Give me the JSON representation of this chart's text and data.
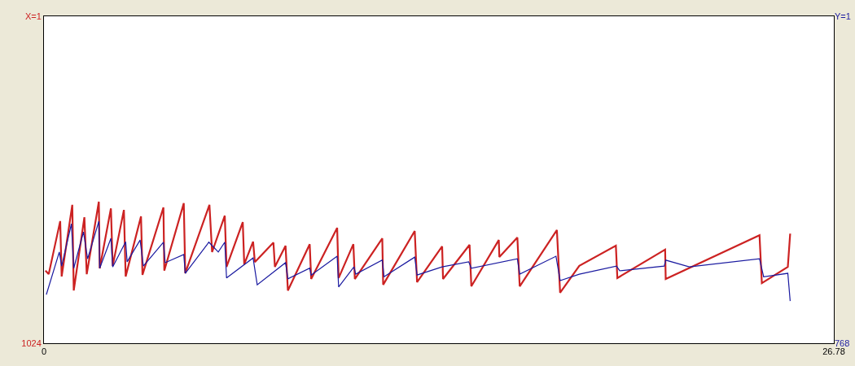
{
  "chart_data": {
    "type": "line",
    "xlim": [
      0,
      26.78
    ],
    "xticks": [
      0,
      26.78
    ],
    "ylim": [
      1024,
      1
    ],
    "yticks": [
      {
        "value": 1,
        "label": "X=1"
      },
      1024
    ],
    "y2lim": [
      768,
      1
    ],
    "y2ticks": [
      {
        "value": 1,
        "label": "Y=1"
      },
      768
    ],
    "marker": "none",
    "line_style": "solid",
    "series": [
      {
        "color": "#cc2222",
        "x": [
          0.05,
          0.16,
          0.55,
          0.6,
          0.96,
          1.01,
          1.37,
          1.45,
          1.86,
          1.89,
          2.27,
          2.33,
          2.71,
          2.77,
          3.29,
          3.34,
          4.05,
          4.08,
          4.74,
          4.79,
          5.61,
          5.7,
          6.13,
          6.19,
          6.74,
          6.79,
          7.09,
          7.15,
          7.78,
          7.83,
          8.19,
          8.27,
          9.01,
          9.06,
          9.94,
          9.99,
          10.49,
          10.54,
          11.47,
          11.5,
          12.57,
          12.65,
          13.5,
          13.53,
          14.43,
          14.49,
          15.42,
          15.44,
          16.05,
          16.13,
          17.39,
          17.5,
          18.15,
          19.39,
          19.44,
          21.06,
          21.08,
          24.26,
          24.34,
          25.22,
          25.3
        ],
        "values": [
          797,
          808,
          642,
          815,
          591,
          859,
          630,
          808,
          581,
          790,
          602,
          782,
          607,
          815,
          627,
          810,
          599,
          797,
          586,
          805,
          591,
          739,
          625,
          785,
          645,
          777,
          706,
          770,
          709,
          785,
          719,
          859,
          714,
          823,
          663,
          820,
          714,
          823,
          696,
          841,
          673,
          833,
          721,
          823,
          716,
          846,
          701,
          754,
          693,
          846,
          670,
          866,
          782,
          719,
          820,
          731,
          823,
          686,
          836,
          785,
          681
        ]
      },
      {
        "color": "#1a1aa0",
        "axis": "y2",
        "x": [
          0.08,
          0.52,
          0.6,
          0.93,
          1.01,
          1.34,
          1.48,
          1.86,
          1.89,
          2.27,
          2.33,
          2.77,
          2.82,
          3.26,
          3.37,
          4.05,
          4.11,
          4.74,
          4.79,
          5.59,
          5.91,
          6.13,
          6.19,
          7.09,
          7.23,
          8.19,
          8.27,
          9.01,
          9.06,
          9.94,
          9.99,
          10.51,
          10.57,
          11.47,
          11.53,
          12.57,
          12.65,
          13.5,
          14.4,
          14.49,
          16.05,
          16.13,
          17.36,
          17.5,
          18.15,
          19.41,
          19.52,
          21.03,
          21.08,
          21.88,
          24.26,
          24.4,
          25.22,
          25.3
        ],
        "values": [
          654,
          554,
          587,
          488,
          592,
          507,
          570,
          482,
          592,
          522,
          589,
          530,
          577,
          526,
          587,
          531,
          579,
          560,
          604,
          531,
          554,
          531,
          615,
          568,
          631,
          579,
          617,
          592,
          608,
          564,
          636,
          589,
          606,
          573,
          612,
          566,
          608,
          589,
          577,
          592,
          570,
          606,
          564,
          621,
          606,
          587,
          598,
          587,
          573,
          589,
          570,
          612,
          604,
          669
        ]
      }
    ]
  }
}
